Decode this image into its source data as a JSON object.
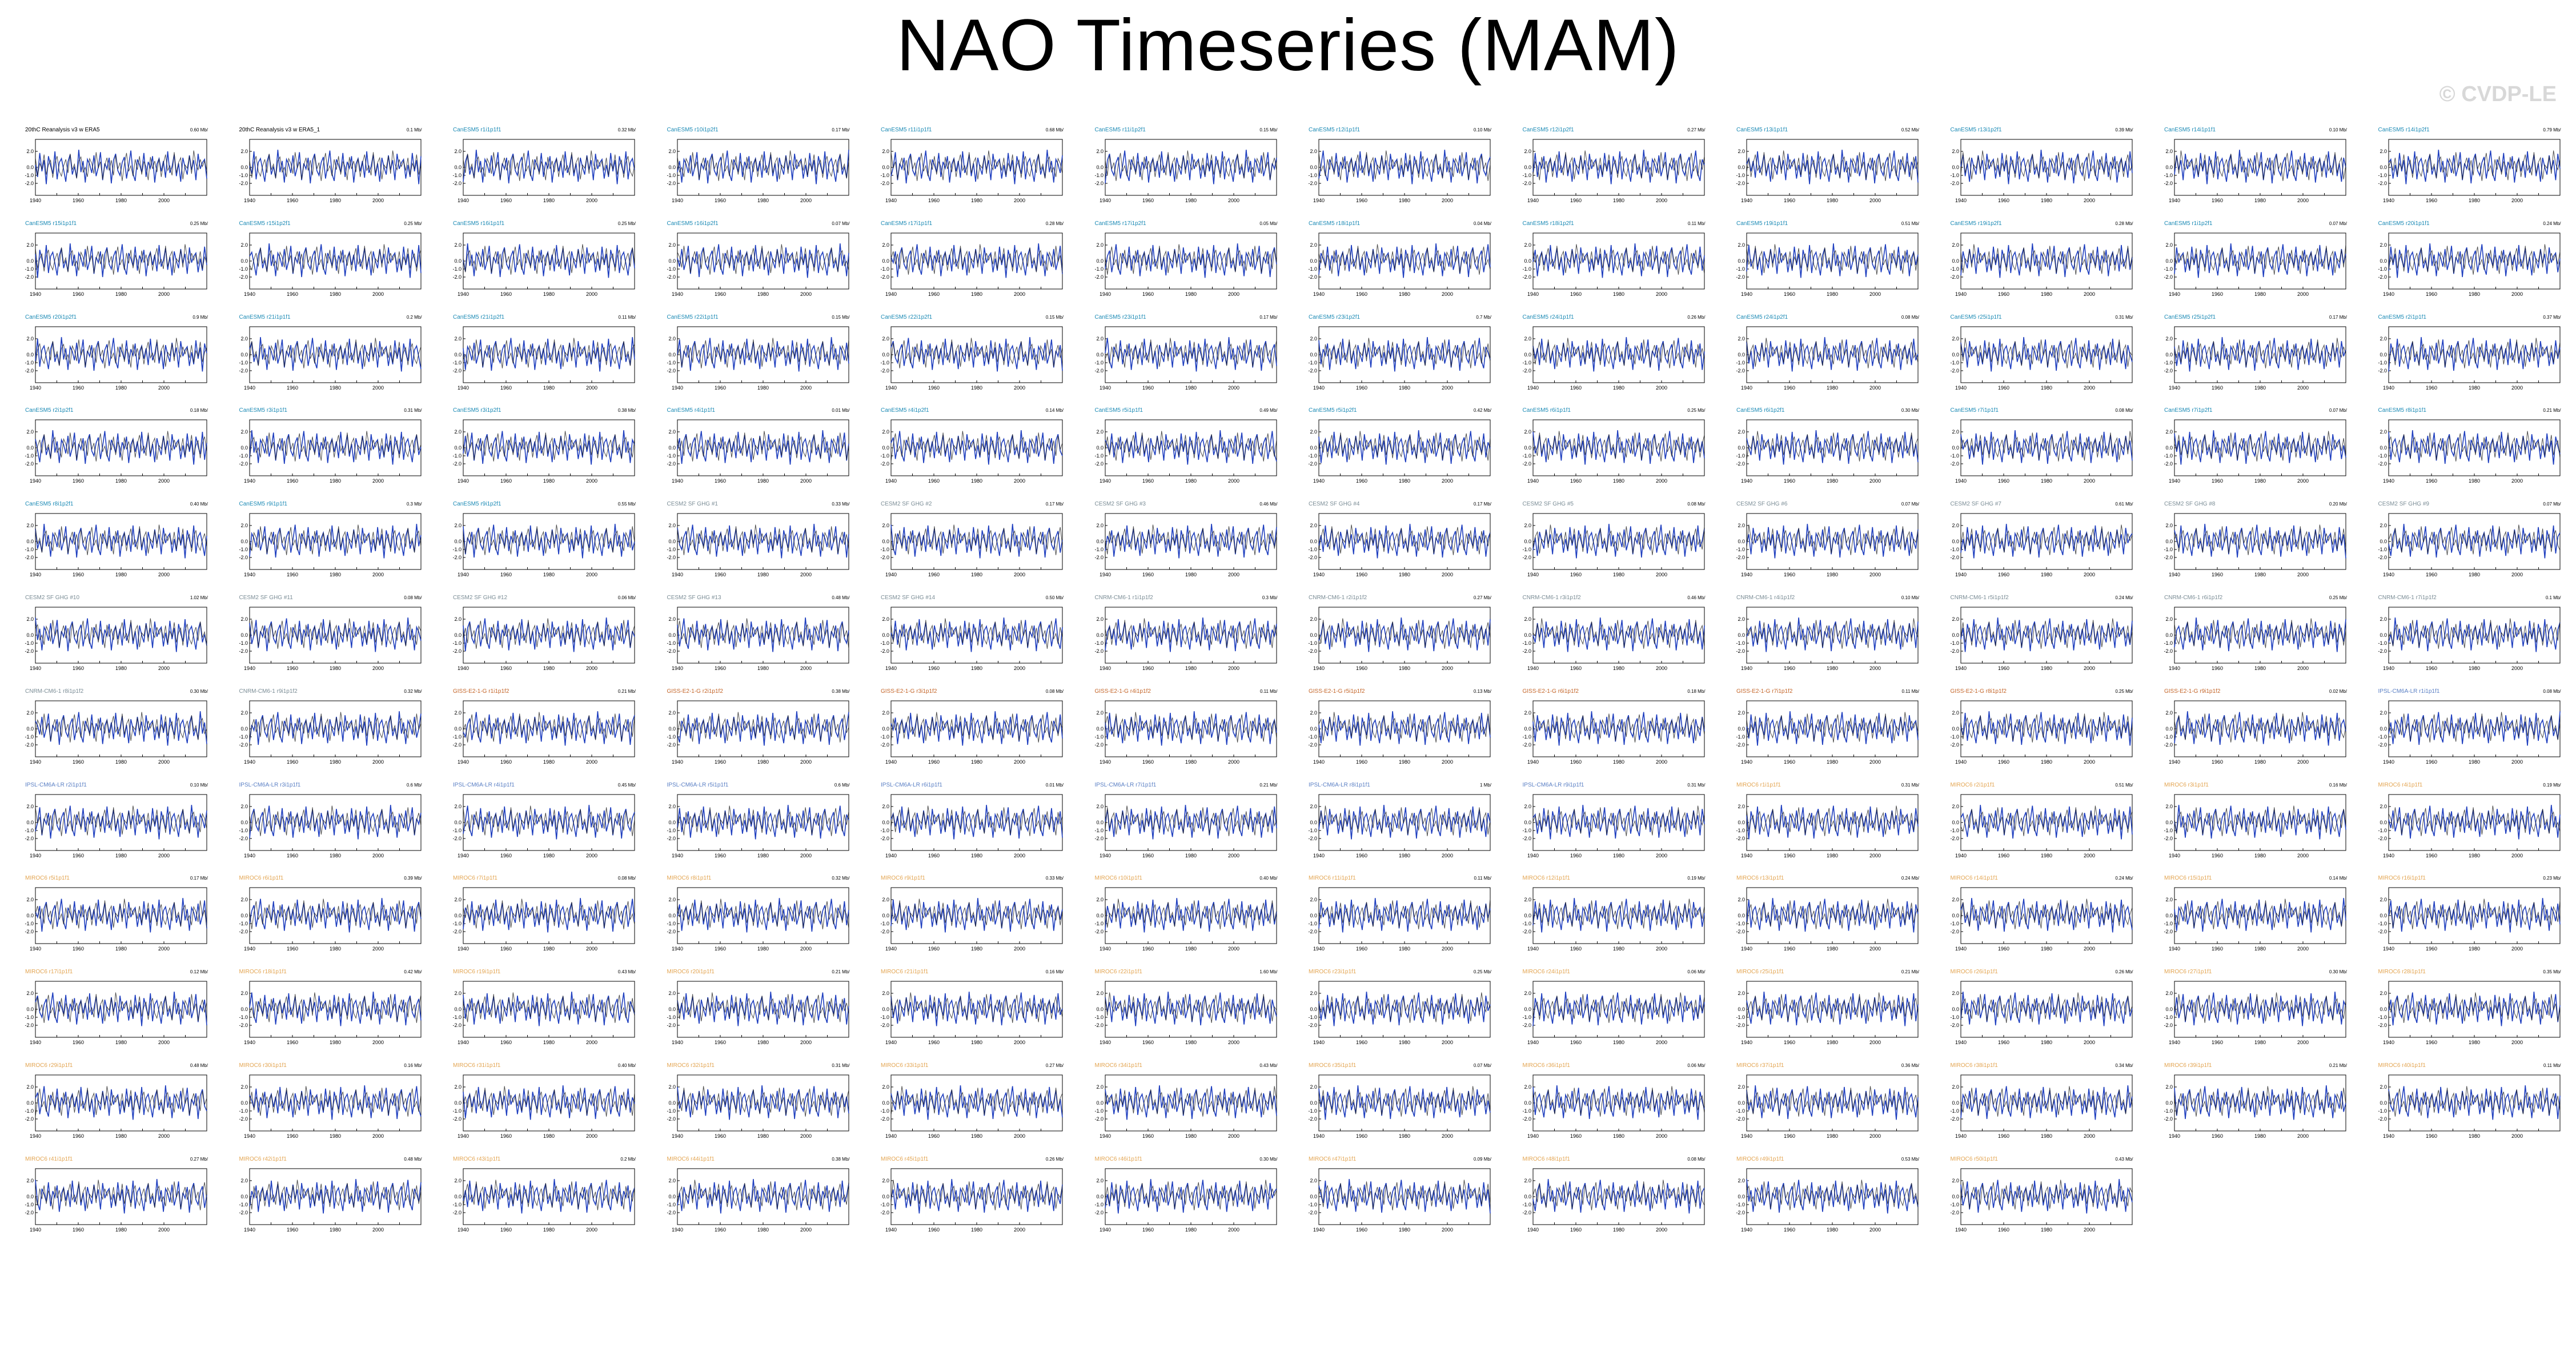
{
  "title": "NAO Timeseries (MAM)",
  "watermark": "© CVDP-LE",
  "colors": {
    "model_line": "#1f3fbf",
    "obs_line": "#222222",
    "cesm": "#1b8ab5",
    "cesm2": "#7b8d96",
    "giss": "#c4662a",
    "ipsl": "#5a7fc4",
    "mpi": "#e3a552"
  },
  "chart_data": {
    "type": "line",
    "panel_count": 148,
    "xlim": [
      1940,
      2020
    ],
    "x_ticks": [
      1940,
      1960,
      1980,
      2000
    ],
    "ylim": [
      -3.5,
      3.5
    ],
    "y_ticks": [
      "2.0",
      "0.0",
      "-1.0",
      "-2.0"
    ],
    "series": [
      {
        "name": "model",
        "color": "#1f3fbf",
        "y": [
          0.3,
          -1.2,
          1.8,
          -0.5,
          0.9,
          -2.1,
          1.4,
          0.2,
          -0.8,
          2.0,
          -1.5,
          0.6,
          1.1,
          -0.3,
          -1.8,
          0.7,
          1.6,
          -0.9,
          0.1,
          -1.3,
          2.2,
          -0.6,
          0.8,
          -1.9,
          1.0,
          0.4,
          -0.7,
          1.5,
          -1.1,
          0.0,
          1.9,
          -1.6,
          0.5,
          -0.2,
          1.2,
          -2.0,
          0.9,
          1.7,
          -0.4,
          -1.0,
          0.6,
          1.3,
          -1.4,
          0.2,
          2.1,
          -0.8,
          -1.7,
          1.0,
          0.3,
          -0.6,
          1.8,
          -1.2,
          0.7,
          -0.1,
          1.4,
          -1.9,
          0.4,
          1.1,
          -0.5,
          0.8,
          -1.3,
          2.0,
          -0.7,
          0.1,
          1.6,
          -1.1,
          0.5,
          -1.8,
          1.2,
          0.0,
          -0.9,
          1.5,
          -0.3,
          0.9,
          -1.6,
          1.7,
          -0.2,
          0.6,
          1.0,
          -1.4
        ]
      },
      {
        "name": "observed",
        "color": "#222222",
        "y": [
          0.1,
          0.8,
          -0.4,
          1.2,
          -1.0,
          0.5,
          -0.2,
          1.6,
          -0.9,
          0.3,
          0.9,
          -1.3,
          0.6,
          1.4,
          -0.5,
          -1.1,
          0.2,
          1.0,
          -0.7,
          1.7,
          -0.3,
          0.4,
          -1.4,
          0.8,
          1.3,
          -0.6,
          0.0,
          -1.2,
          1.1,
          0.5,
          -0.8,
          1.9,
          -0.1,
          0.7,
          -1.5,
          0.3,
          1.2,
          -0.4,
          0.9,
          -1.0,
          1.5,
          -0.2,
          0.6,
          -1.7,
          0.4,
          1.8,
          -0.5,
          0.2,
          -1.1,
          1.0,
          -0.3,
          1.4,
          -0.9,
          0.7,
          0.1,
          -1.6,
          1.3,
          -0.2,
          0.8,
          -0.6,
          1.1,
          -1.2,
          0.5,
          1.6,
          -0.4,
          0.2,
          -1.0,
          1.9,
          -0.7,
          0.6,
          1.2,
          -1.5,
          0.3,
          -0.1,
          1.4,
          -0.8,
          2.1,
          0.4,
          -0.3,
          1.0
        ]
      }
    ],
    "panels": [
      {
        "title": "20thC Reanalysis v3 w ERA5",
        "value": "0.60 Mb/",
        "color": "#000000"
      },
      {
        "title": "20thC Reanalysis v3 w ERA5_1",
        "value": "0.1 Mb/",
        "color": "#000000"
      },
      {
        "title": "CanESM5 r1i1p1f1",
        "value": "0.32 Mb/",
        "color": "#1b8ab5"
      },
      {
        "title": "CanESM5 r10i1p2f1",
        "value": "0.17 Mb/",
        "color": "#1b8ab5"
      },
      {
        "title": "CanESM5 r11i1p1f1",
        "value": "0.68 Mb/",
        "color": "#1b8ab5"
      },
      {
        "title": "CanESM5 r11i1p2f1",
        "value": "0.15 Mb/",
        "color": "#1b8ab5"
      },
      {
        "title": "CanESM5 r12i1p1f1",
        "value": "0.10 Mb/",
        "color": "#1b8ab5"
      },
      {
        "title": "CanESM5 r12i1p2f1",
        "value": "0.27 Mb/",
        "color": "#1b8ab5"
      },
      {
        "title": "CanESM5 r13i1p1f1",
        "value": "0.52 Mb/",
        "color": "#1b8ab5"
      },
      {
        "title": "CanESM5 r13i1p2f1",
        "value": "0.39 Mb/",
        "color": "#1b8ab5"
      },
      {
        "title": "CanESM5 r14i1p1f1",
        "value": "0.10 Mb/",
        "color": "#1b8ab5"
      },
      {
        "title": "CanESM5 r14i1p2f1",
        "value": "0.79 Mb/",
        "color": "#1b8ab5"
      },
      {
        "title": "CanESM5 r15i1p1f1",
        "value": "0.25 Mb/",
        "color": "#1b8ab5"
      },
      {
        "title": "CanESM5 r15i1p2f1",
        "value": "0.25 Mb/",
        "color": "#1b8ab5"
      },
      {
        "title": "CanESM5 r16i1p1f1",
        "value": "0.25 Mb/",
        "color": "#1b8ab5"
      },
      {
        "title": "CanESM5 r16i1p2f1",
        "value": "0.07 Mb/",
        "color": "#1b8ab5"
      },
      {
        "title": "CanESM5 r17i1p1f1",
        "value": "0.28 Mb/",
        "color": "#1b8ab5"
      },
      {
        "title": "CanESM5 r17i1p2f1",
        "value": "0.05 Mb/",
        "color": "#1b8ab5"
      },
      {
        "title": "CanESM5 r18i1p1f1",
        "value": "0.04 Mb/",
        "color": "#1b8ab5"
      },
      {
        "title": "CanESM5 r18i1p2f1",
        "value": "0.11 Mb/",
        "color": "#1b8ab5"
      },
      {
        "title": "CanESM5 r19i1p1f1",
        "value": "0.51 Mb/",
        "color": "#1b8ab5"
      },
      {
        "title": "CanESM5 r19i1p2f1",
        "value": "0.28 Mb/",
        "color": "#1b8ab5"
      },
      {
        "title": "CanESM5 r1i1p2f1",
        "value": "0.07 Mb/",
        "color": "#1b8ab5"
      },
      {
        "title": "CanESM5 r20i1p1f1",
        "value": "0.24 Mb/",
        "color": "#1b8ab5"
      },
      {
        "title": "CanESM5 r20i1p2f1",
        "value": "0.9 Mb/",
        "color": "#1b8ab5"
      },
      {
        "title": "CanESM5 r21i1p1f1",
        "value": "0.2 Mb/",
        "color": "#1b8ab5"
      },
      {
        "title": "CanESM5 r21i1p2f1",
        "value": "0.11 Mb/",
        "color": "#1b8ab5"
      },
      {
        "title": "CanESM5 r22i1p1f1",
        "value": "0.15 Mb/",
        "color": "#1b8ab5"
      },
      {
        "title": "CanESM5 r22i1p2f1",
        "value": "0.15 Mb/",
        "color": "#1b8ab5"
      },
      {
        "title": "CanESM5 r23i1p1f1",
        "value": "0.17 Mb/",
        "color": "#1b8ab5"
      },
      {
        "title": "CanESM5 r23i1p2f1",
        "value": "0.7 Mb/",
        "color": "#1b8ab5"
      },
      {
        "title": "CanESM5 r24i1p1f1",
        "value": "0.26 Mb/",
        "color": "#1b8ab5"
      },
      {
        "title": "CanESM5 r24i1p2f1",
        "value": "0.08 Mb/",
        "color": "#1b8ab5"
      },
      {
        "title": "CanESM5 r25i1p1f1",
        "value": "0.31 Mb/",
        "color": "#1b8ab5"
      },
      {
        "title": "CanESM5 r25i1p2f1",
        "value": "0.17 Mb/",
        "color": "#1b8ab5"
      },
      {
        "title": "CanESM5 r2i1p1f1",
        "value": "0.37 Mb/",
        "color": "#1b8ab5"
      },
      {
        "title": "CanESM5 r2i1p2f1",
        "value": "0.18 Mb/",
        "color": "#1b8ab5"
      },
      {
        "title": "CanESM5 r3i1p1f1",
        "value": "0.31 Mb/",
        "color": "#1b8ab5"
      },
      {
        "title": "CanESM5 r3i1p2f1",
        "value": "0.38 Mb/",
        "color": "#1b8ab5"
      },
      {
        "title": "CanESM5 r4i1p1f1",
        "value": "0.01 Mb/",
        "color": "#1b8ab5"
      },
      {
        "title": "CanESM5 r4i1p2f1",
        "value": "0.14 Mb/",
        "color": "#1b8ab5"
      },
      {
        "title": "CanESM5 r5i1p1f1",
        "value": "0.49 Mb/",
        "color": "#1b8ab5"
      },
      {
        "title": "CanESM5 r5i1p2f1",
        "value": "0.42 Mb/",
        "color": "#1b8ab5"
      },
      {
        "title": "CanESM5 r6i1p1f1",
        "value": "0.25 Mb/",
        "color": "#1b8ab5"
      },
      {
        "title": "CanESM5 r6i1p2f1",
        "value": "0.30 Mb/",
        "color": "#1b8ab5"
      },
      {
        "title": "CanESM5 r7i1p1f1",
        "value": "0.08 Mb/",
        "color": "#1b8ab5"
      },
      {
        "title": "CanESM5 r7i1p2f1",
        "value": "0.07 Mb/",
        "color": "#1b8ab5"
      },
      {
        "title": "CanESM5 r8i1p1f1",
        "value": "0.21 Mb/",
        "color": "#1b8ab5"
      },
      {
        "title": "CanESM5 r8i1p2f1",
        "value": "0.40 Mb/",
        "color": "#1b8ab5"
      },
      {
        "title": "CanESM5 r9i1p1f1",
        "value": "0.3 Mb/",
        "color": "#1b8ab5"
      },
      {
        "title": "CanESM5 r9i1p2f1",
        "value": "0.55 Mb/",
        "color": "#1b8ab5"
      },
      {
        "title": "CESM2 SF GHG #1",
        "value": "0.33 Mb/",
        "color": "#7b8d96"
      },
      {
        "title": "CESM2 SF GHG #2",
        "value": "0.17 Mb/",
        "color": "#7b8d96"
      },
      {
        "title": "CESM2 SF GHG #3",
        "value": "0.46 Mb/",
        "color": "#7b8d96"
      },
      {
        "title": "CESM2 SF GHG #4",
        "value": "0.17 Mb/",
        "color": "#7b8d96"
      },
      {
        "title": "CESM2 SF GHG #5",
        "value": "0.08 Mb/",
        "color": "#7b8d96"
      },
      {
        "title": "CESM2 SF GHG #6",
        "value": "0.07 Mb/",
        "color": "#7b8d96"
      },
      {
        "title": "CESM2 SF GHG #7",
        "value": "0.61 Mb/",
        "color": "#7b8d96"
      },
      {
        "title": "CESM2 SF GHG #8",
        "value": "0.20 Mb/",
        "color": "#7b8d96"
      },
      {
        "title": "CESM2 SF GHG #9",
        "value": "0.07 Mb/",
        "color": "#7b8d96"
      },
      {
        "title": "CESM2 SF GHG #10",
        "value": "1.02 Mb/",
        "color": "#7b8d96"
      },
      {
        "title": "CESM2 SF GHG #11",
        "value": "0.08 Mb/",
        "color": "#7b8d96"
      },
      {
        "title": "CESM2 SF GHG #12",
        "value": "0.06 Mb/",
        "color": "#7b8d96"
      },
      {
        "title": "CESM2 SF GHG #13",
        "value": "0.48 Mb/",
        "color": "#7b8d96"
      },
      {
        "title": "CESM2 SF GHG #14",
        "value": "0.50 Mb/",
        "color": "#7b8d96"
      },
      {
        "title": "CNRM-CM6-1 r1i1p1f2",
        "value": "0.3 Mb/",
        "color": "#7b8d96"
      },
      {
        "title": "CNRM-CM6-1 r2i1p1f2",
        "value": "0.27 Mb/",
        "color": "#7b8d96"
      },
      {
        "title": "CNRM-CM6-1 r3i1p1f2",
        "value": "0.46 Mb/",
        "color": "#7b8d96"
      },
      {
        "title": "CNRM-CM6-1 r4i1p1f2",
        "value": "0.10 Mb/",
        "color": "#7b8d96"
      },
      {
        "title": "CNRM-CM6-1 r5i1p1f2",
        "value": "0.24 Mb/",
        "color": "#7b8d96"
      },
      {
        "title": "CNRM-CM6-1 r6i1p1f2",
        "value": "0.25 Mb/",
        "color": "#7b8d96"
      },
      {
        "title": "CNRM-CM6-1 r7i1p1f2",
        "value": "0.1 Mb/",
        "color": "#7b8d96"
      },
      {
        "title": "CNRM-CM6-1 r8i1p1f2",
        "value": "0.30 Mb/",
        "color": "#7b8d96"
      },
      {
        "title": "CNRM-CM6-1 r9i1p1f2",
        "value": "0.32 Mb/",
        "color": "#7b8d96"
      },
      {
        "title": "GISS-E2-1-G r1i1p1f2",
        "value": "0.21 Mb/",
        "color": "#c4662a"
      },
      {
        "title": "GISS-E2-1-G r2i1p1f2",
        "value": "0.38 Mb/",
        "color": "#c4662a"
      },
      {
        "title": "GISS-E2-1-G r3i1p1f2",
        "value": "0.08 Mb/",
        "color": "#c4662a"
      },
      {
        "title": "GISS-E2-1-G r4i1p1f2",
        "value": "0.11 Mb/",
        "color": "#c4662a"
      },
      {
        "title": "GISS-E2-1-G r5i1p1f2",
        "value": "0.13 Mb/",
        "color": "#c4662a"
      },
      {
        "title": "GISS-E2-1-G r6i1p1f2",
        "value": "0.18 Mb/",
        "color": "#c4662a"
      },
      {
        "title": "GISS-E2-1-G r7i1p1f2",
        "value": "0.11 Mb/",
        "color": "#c4662a"
      },
      {
        "title": "GISS-E2-1-G r8i1p1f2",
        "value": "0.25 Mb/",
        "color": "#c4662a"
      },
      {
        "title": "GISS-E2-1-G r9i1p1f2",
        "value": "0.02 Mb/",
        "color": "#c4662a"
      },
      {
        "title": "IPSL-CM6A-LR r1i1p1f1",
        "value": "0.08 Mb/",
        "color": "#5a7fc4"
      },
      {
        "title": "IPSL-CM6A-LR r2i1p1f1",
        "value": "0.10 Mb/",
        "color": "#5a7fc4"
      },
      {
        "title": "IPSL-CM6A-LR r3i1p1f1",
        "value": "0.6 Mb/",
        "color": "#5a7fc4"
      },
      {
        "title": "IPSL-CM6A-LR r4i1p1f1",
        "value": "0.45 Mb/",
        "color": "#5a7fc4"
      },
      {
        "title": "IPSL-CM6A-LR r5i1p1f1",
        "value": "0.6 Mb/",
        "color": "#5a7fc4"
      },
      {
        "title": "IPSL-CM6A-LR r6i1p1f1",
        "value": "0.01 Mb/",
        "color": "#5a7fc4"
      },
      {
        "title": "IPSL-CM6A-LR r7i1p1f1",
        "value": "0.21 Mb/",
        "color": "#5a7fc4"
      },
      {
        "title": "IPSL-CM6A-LR r8i1p1f1",
        "value": "1 Mb/",
        "color": "#5a7fc4"
      },
      {
        "title": "IPSL-CM6A-LR r9i1p1f1",
        "value": "0.31 Mb/",
        "color": "#5a7fc4"
      },
      {
        "title": "MIROC6 r1i1p1f1",
        "value": "0.31 Mb/",
        "color": "#e3a552"
      },
      {
        "title": "MIROC6 r2i1p1f1",
        "value": "0.51 Mb/",
        "color": "#e3a552"
      },
      {
        "title": "MIROC6 r3i1p1f1",
        "value": "0.16 Mb/",
        "color": "#e3a552"
      },
      {
        "title": "MIROC6 r4i1p1f1",
        "value": "0.19 Mb/",
        "color": "#e3a552"
      },
      {
        "title": "MIROC6 r5i1p1f1",
        "value": "0.17 Mb/",
        "color": "#e3a552"
      },
      {
        "title": "MIROC6 r6i1p1f1",
        "value": "0.39 Mb/",
        "color": "#e3a552"
      },
      {
        "title": "MIROC6 r7i1p1f1",
        "value": "0.08 Mb/",
        "color": "#e3a552"
      },
      {
        "title": "MIROC6 r8i1p1f1",
        "value": "0.32 Mb/",
        "color": "#e3a552"
      },
      {
        "title": "MIROC6 r9i1p1f1",
        "value": "0.33 Mb/",
        "color": "#e3a552"
      },
      {
        "title": "MIROC6 r10i1p1f1",
        "value": "0.40 Mb/",
        "color": "#e3a552"
      },
      {
        "title": "MIROC6 r11i1p1f1",
        "value": "0.11 Mb/",
        "color": "#e3a552"
      },
      {
        "title": "MIROC6 r12i1p1f1",
        "value": "0.19 Mb/",
        "color": "#e3a552"
      },
      {
        "title": "MIROC6 r13i1p1f1",
        "value": "0.24 Mb/",
        "color": "#e3a552"
      },
      {
        "title": "MIROC6 r14i1p1f1",
        "value": "0.24 Mb/",
        "color": "#e3a552"
      },
      {
        "title": "MIROC6 r15i1p1f1",
        "value": "0.14 Mb/",
        "color": "#e3a552"
      },
      {
        "title": "MIROC6 r16i1p1f1",
        "value": "0.23 Mb/",
        "color": "#e3a552"
      },
      {
        "title": "MIROC6 r17i1p1f1",
        "value": "0.12 Mb/",
        "color": "#e3a552"
      },
      {
        "title": "MIROC6 r18i1p1f1",
        "value": "0.42 Mb/",
        "color": "#e3a552"
      },
      {
        "title": "MIROC6 r19i1p1f1",
        "value": "0.43 Mb/",
        "color": "#e3a552"
      },
      {
        "title": "MIROC6 r20i1p1f1",
        "value": "0.21 Mb/",
        "color": "#e3a552"
      },
      {
        "title": "MIROC6 r21i1p1f1",
        "value": "0.16 Mb/",
        "color": "#e3a552"
      },
      {
        "title": "MIROC6 r22i1p1f1",
        "value": "1.60 Mb/",
        "color": "#e3a552"
      },
      {
        "title": "MIROC6 r23i1p1f1",
        "value": "0.25 Mb/",
        "color": "#e3a552"
      },
      {
        "title": "MIROC6 r24i1p1f1",
        "value": "0.06 Mb/",
        "color": "#e3a552"
      },
      {
        "title": "MIROC6 r25i1p1f1",
        "value": "0.21 Mb/",
        "color": "#e3a552"
      },
      {
        "title": "MIROC6 r26i1p1f1",
        "value": "0.26 Mb/",
        "color": "#e3a552"
      },
      {
        "title": "MIROC6 r27i1p1f1",
        "value": "0.30 Mb/",
        "color": "#e3a552"
      },
      {
        "title": "MIROC6 r28i1p1f1",
        "value": "0.35 Mb/",
        "color": "#e3a552"
      },
      {
        "title": "MIROC6 r29i1p1f1",
        "value": "0.48 Mb/",
        "color": "#e3a552"
      },
      {
        "title": "MIROC6 r30i1p1f1",
        "value": "0.16 Mb/",
        "color": "#e3a552"
      },
      {
        "title": "MIROC6 r31i1p1f1",
        "value": "0.40 Mb/",
        "color": "#e3a552"
      },
      {
        "title": "MIROC6 r32i1p1f1",
        "value": "0.31 Mb/",
        "color": "#e3a552"
      },
      {
        "title": "MIROC6 r33i1p1f1",
        "value": "0.27 Mb/",
        "color": "#e3a552"
      },
      {
        "title": "MIROC6 r34i1p1f1",
        "value": "0.43 Mb/",
        "color": "#e3a552"
      },
      {
        "title": "MIROC6 r35i1p1f1",
        "value": "0.07 Mb/",
        "color": "#e3a552"
      },
      {
        "title": "MIROC6 r36i1p1f1",
        "value": "0.06 Mb/",
        "color": "#e3a552"
      },
      {
        "title": "MIROC6 r37i1p1f1",
        "value": "0.36 Mb/",
        "color": "#e3a552"
      },
      {
        "title": "MIROC6 r38i1p1f1",
        "value": "0.34 Mb/",
        "color": "#e3a552"
      },
      {
        "title": "MIROC6 r39i1p1f1",
        "value": "0.21 Mb/",
        "color": "#e3a552"
      },
      {
        "title": "MIROC6 r40i1p1f1",
        "value": "0.11 Mb/",
        "color": "#e3a552"
      },
      {
        "title": "MIROC6 r41i1p1f1",
        "value": "0.27 Mb/",
        "color": "#e3a552"
      },
      {
        "title": "MIROC6 r42i1p1f1",
        "value": "0.48 Mb/",
        "color": "#e3a552"
      },
      {
        "title": "MIROC6 r43i1p1f1",
        "value": "0.2 Mb/",
        "color": "#e3a552"
      },
      {
        "title": "MIROC6 r44i1p1f1",
        "value": "0.38 Mb/",
        "color": "#e3a552"
      },
      {
        "title": "MIROC6 r45i1p1f1",
        "value": "0.26 Mb/",
        "color": "#e3a552"
      },
      {
        "title": "MIROC6 r46i1p1f1",
        "value": "0.30 Mb/",
        "color": "#e3a552"
      },
      {
        "title": "MIROC6 r47i1p1f1",
        "value": "0.09 Mb/",
        "color": "#e3a552"
      },
      {
        "title": "MIROC6 r48i1p1f1",
        "value": "0.08 Mb/",
        "color": "#e3a552"
      },
      {
        "title": "MIROC6 r49i1p1f1",
        "value": "0.53 Mb/",
        "color": "#e3a552"
      },
      {
        "title": "MIROC6 r50i1p1f1",
        "value": "0.43 Mb/",
        "color": "#e3a552"
      }
    ]
  }
}
